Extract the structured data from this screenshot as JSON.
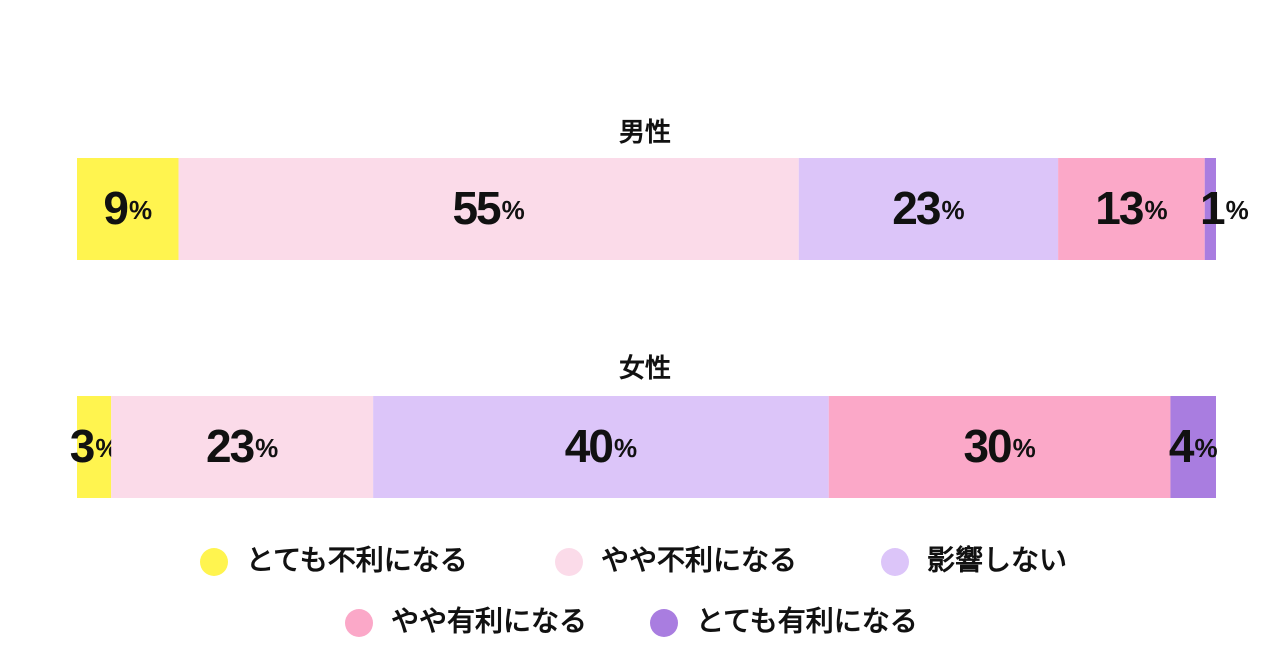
{
  "chart_data": {
    "type": "stacked-bar-100",
    "unit": "%",
    "categories": [
      "男性",
      "女性"
    ],
    "series": [
      {
        "name": "とても不利になる",
        "color": "#fff44f",
        "values": [
          9,
          3
        ]
      },
      {
        "name": "やや不利になる",
        "color": "#fbdbe9",
        "values": [
          55,
          23
        ]
      },
      {
        "name": "影響しない",
        "color": "#dcc5f9",
        "values": [
          23,
          40
        ]
      },
      {
        "name": "やや有利になる",
        "color": "#fba8c8",
        "values": [
          13,
          30
        ]
      },
      {
        "name": "とても有利になる",
        "color": "#a97de0",
        "values": [
          1,
          4
        ]
      }
    ]
  }
}
